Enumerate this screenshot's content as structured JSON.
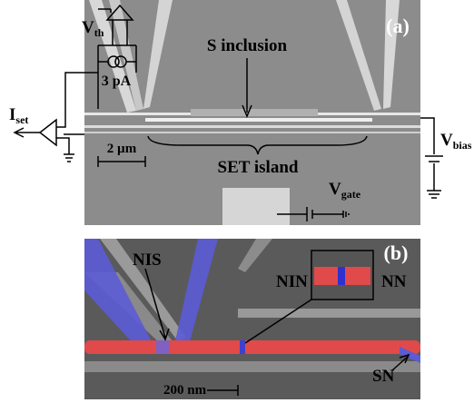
{
  "panel_a": {
    "label": "(a)",
    "s_inclusion": "S inclusion",
    "set_island": "SET island",
    "scale_bar": "2 µm"
  },
  "circuit": {
    "v_th": {
      "main": "V",
      "sub": "th"
    },
    "current": "3 pA",
    "i_set": {
      "main": "I",
      "sub": "set"
    },
    "v_bias": {
      "main": "V",
      "sub": "bias"
    },
    "v_gate": {
      "main": "V",
      "sub": "gate"
    }
  },
  "panel_b": {
    "label": "(b)",
    "nis": "NIS",
    "nin": "NIN",
    "nn": "NN",
    "sn": "SN",
    "scale_bar": "200 nm"
  }
}
